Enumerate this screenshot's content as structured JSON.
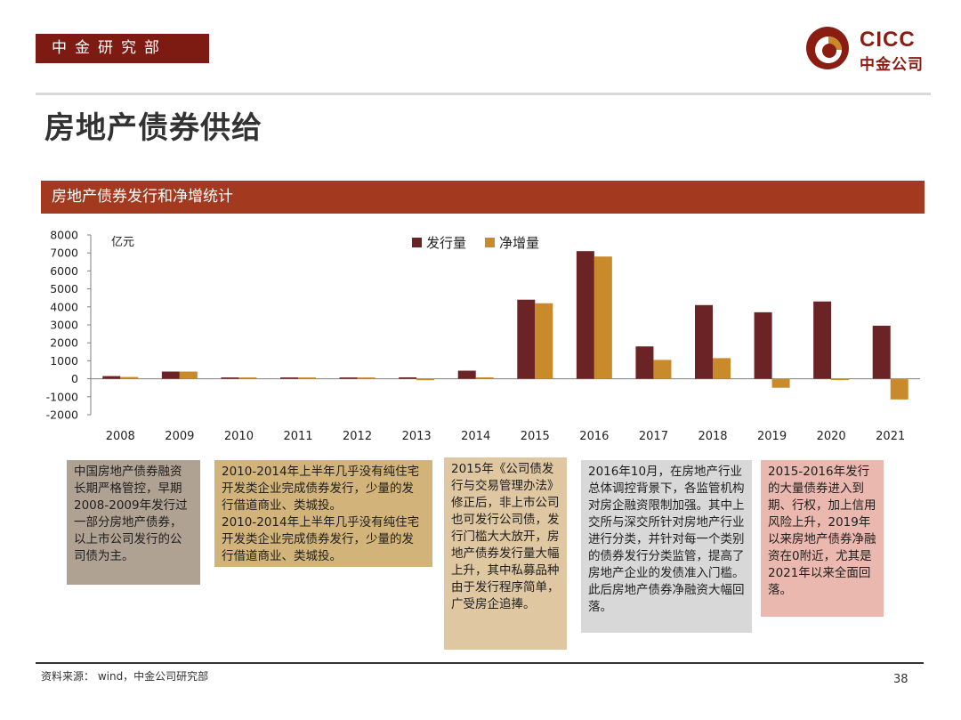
{
  "header": {
    "tag": "中金研究部",
    "logo_en": "CICC",
    "logo_cn": "中金公司",
    "brand_color": "#8b1c12"
  },
  "page_title": "房地产债券供给",
  "section_title": "房地产债券发行和净增统计",
  "chart_data": {
    "type": "bar",
    "title": "房地产债券发行和净增统计",
    "unit_label": "亿元",
    "categories": [
      "2008",
      "2009",
      "2010",
      "2011",
      "2012",
      "2013",
      "2014",
      "2015",
      "2016",
      "2017",
      "2018",
      "2019",
      "2020",
      "2021"
    ],
    "series": [
      {
        "name": "发行量",
        "color": "#6b2326",
        "values": [
          150,
          400,
          0,
          30,
          40,
          80,
          450,
          4400,
          7100,
          1800,
          4100,
          3700,
          4300,
          2950
        ]
      },
      {
        "name": "净增量",
        "color": "#c98a2c",
        "values": [
          100,
          400,
          0,
          0,
          0,
          -80,
          80,
          4200,
          6800,
          1050,
          1150,
          -500,
          -30,
          -1150
        ]
      }
    ],
    "ylim": [
      -2000,
      8000
    ],
    "yticks": [
      8000,
      7000,
      6000,
      5000,
      4000,
      3000,
      2000,
      1000,
      0,
      -1000,
      -2000
    ],
    "legend_position": "top-center"
  },
  "notes": [
    "中国房地产债券融资长期严格管控，早期2008-2009年发行过一部分房地产债券，以上市公司发行的公司债为主。",
    "2010-2014年上半年几乎没有纯住宅开发类企业完成债券发行，少量的发行借道商业、类城投。\n2010-2014年上半年几乎没有纯住宅开发类企业完成债券发行，少量的发行借道商业、类城投。",
    "2015年《公司债发行与交易管理办法》修正后，非上市公司也可发行公司债，发行门槛大大放开，房地产债券发行量大幅上升，其中私募品种由于发行程序简单，广受房企追捧。",
    "2016年10月，在房地产行业总体调控背景下，各监管机构对房企融资限制加强。其中上交所与深交所针对房地产行业进行分类，并针对每一个类别的债券发行分类监管，提高了房地产企业的发债准入门槛。此后房地产债券净融资大幅回落。",
    "2015-2016年发行的大量债券进入到期、行权，加上信用风险上升，2019年以来房地产债券净融资在0附近，尤其是2021年以来全面回落。"
  ],
  "footer": {
    "source": "资料来源： wind，中金公司研究部",
    "page_number": "38"
  }
}
